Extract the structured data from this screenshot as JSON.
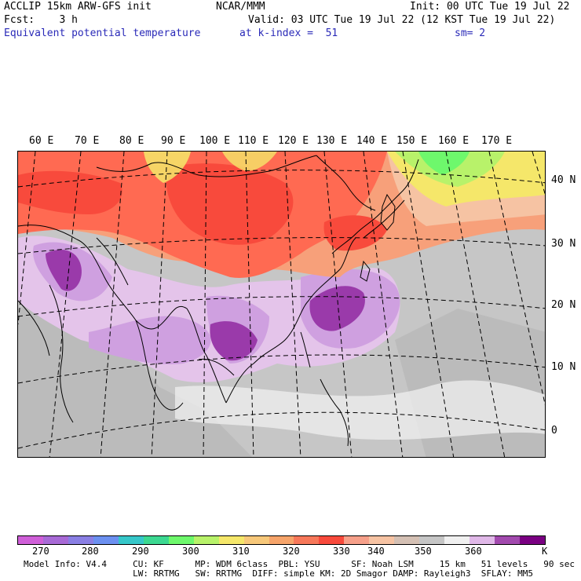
{
  "header": {
    "model": "ACCLIP 15km ARW-GFS init",
    "org": "NCAR/MMM",
    "init": "Init: 00 UTC Tue 19 Jul 22",
    "fcst": "Fcst:    3 h",
    "valid": "Valid: 03 UTC Tue 19 Jul 22 (12 KST Tue 19 Jul 22)",
    "field": "Equivalent potential temperature",
    "level": "at k-index =  51",
    "smooth": "sm= 2"
  },
  "map": {
    "longitude_labels": [
      "60 E",
      "70 E",
      "80 E",
      "90 E",
      "100 E",
      "110 E",
      "120 E",
      "130 E",
      "140 E",
      "150 E",
      "160 E",
      "170 E"
    ],
    "latitude_labels": [
      "40 N",
      "30 N",
      "20 N",
      "10 N",
      "0"
    ],
    "colors": {
      "orange_red": "#ff6a52",
      "red": "#f84a3c",
      "salmon": "#f7a07a",
      "peach": "#f6c3a3",
      "yellow": "#f5e76a",
      "lightgreen": "#b8f26a",
      "green": "#6ef86c",
      "gray": "#c6c6c6",
      "gray_dark": "#b7b7b7",
      "lavender": "#e4c4ea",
      "light_purple": "#cfa0e0",
      "purple": "#9a3aaa",
      "dark_purple": "#7a0082"
    }
  },
  "colorbar": {
    "colors": [
      "#cf5fd8",
      "#a86ad6",
      "#8a7fe4",
      "#6c90f0",
      "#36c7c9",
      "#3cd891",
      "#6ef86c",
      "#b8f26a",
      "#f5e76a",
      "#f7c87a",
      "#f6a46a",
      "#f7785a",
      "#f84a3c",
      "#f6a08a",
      "#f6c3a3",
      "#d4c0b4",
      "#c6c6c6",
      "#f0f0f0",
      "#e0b8e8",
      "#a24aae",
      "#7a0082"
    ],
    "labels": [
      "270",
      "280",
      "290",
      "300",
      "310",
      "320",
      "330",
      "340",
      "350",
      "360",
      "K"
    ]
  },
  "footer": {
    "line1": "Model Info: V4.4     CU: KF      MP: WDM 6class  PBL: YSU      SF: Noah LSM     15 km   51 levels   90 sec",
    "line2": "                     LW: RRTMG   SW: RRTMG  DIFF: simple KM: 2D Smagor DAMP: Rayleigh3  SFLAY: MM5"
  }
}
